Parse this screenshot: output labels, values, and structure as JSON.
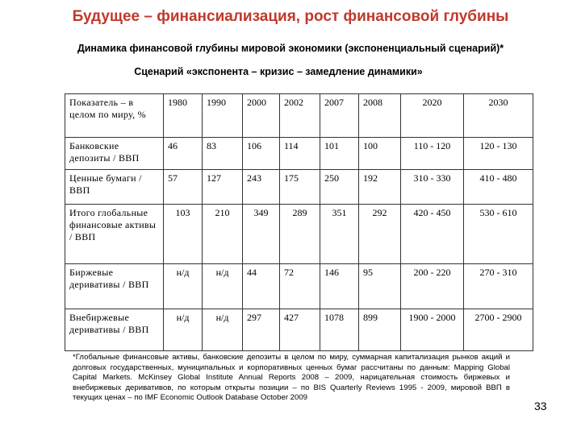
{
  "title": "Будущее – финансиализация, рост финансовой глубины",
  "subtitle": "Динамика финансовой глубины мировой экономики (экспоненциальный сценарий)*",
  "scenario": "Сценарий «экспонента – кризис – замедление динамики»",
  "table": {
    "header": [
      "Показатель – в целом по миру, %",
      "1980",
      "1990",
      "2000",
      "2002",
      "2007",
      "2008",
      "2020",
      "2030"
    ],
    "rows": [
      [
        "Банковские депозиты / ВВП",
        "46",
        "83",
        "106",
        "114",
        "101",
        "100",
        "110 - 120",
        "120 - 130"
      ],
      [
        "Ценные бумаги / ВВП",
        "57",
        "127",
        "243",
        "175",
        "250",
        "192",
        "310 - 330",
        "410 - 480"
      ],
      [
        "Итого глобальные финансовые активы / ВВП",
        "103",
        "210",
        "349",
        "289",
        "351",
        "292",
        "420 - 450",
        "530 - 610"
      ],
      [
        "Биржевые деривативы / ВВП",
        "н/д",
        "н/д",
        "44",
        "72",
        "146",
        "95",
        "200 - 220",
        "270 - 310"
      ],
      [
        "Внебиржевые деривативы / ВВП",
        "н/д",
        "н/д",
        "297",
        "427",
        "1078",
        "899",
        "1900 - 2000",
        "2700 - 2900"
      ]
    ]
  },
  "footnote": "*Глобальные финансовые активы, банковские депозиты в целом по миру, суммарная капитализация рынков акций и долговых государственных, муниципальных и корпоративных ценных бумаг рассчитаны по данным: Mapping Global Capital Markets. McKinsey Global Institute Annual Reports 2008 – 2009, нарицательная стоимость биржевых и внебиржевых деривативов, по которым открыты позиции – по BIS Quarterly Reviews 1995 - 2009, мировой ВВП в текущих ценах – по IMF Economic Outlook Database October 2009",
  "page_number": "33"
}
